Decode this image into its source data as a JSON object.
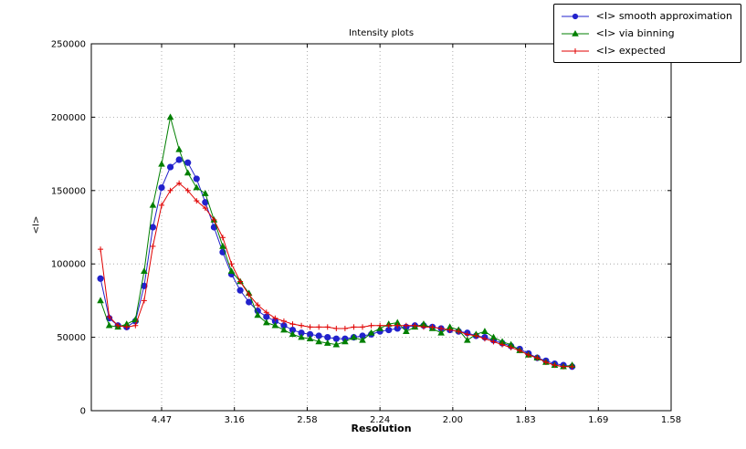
{
  "chart": {
    "title": "Intensity plots",
    "xlabel": "Resolution",
    "ylabel": "<I>"
  },
  "chart_data": {
    "type": "line",
    "title": "Intensity plots",
    "xlabel": "Resolution",
    "ylabel": "<I>",
    "grid": "dotted",
    "legend_position": "top-right",
    "x_note": "x axis is linear in 1/d^2; tick labels show resolution in Angstrom",
    "xlim_inv_d2": [
      0.0017,
      0.4
    ],
    "ylim": [
      0,
      250000
    ],
    "y_ticks": [
      0,
      50000,
      100000,
      150000,
      200000,
      250000
    ],
    "x_ticks": [
      {
        "label": "4.47",
        "inv_d2": 0.05
      },
      {
        "label": "3.16",
        "inv_d2": 0.1
      },
      {
        "label": "2.58",
        "inv_d2": 0.15
      },
      {
        "label": "2.24",
        "inv_d2": 0.2
      },
      {
        "label": "2.00",
        "inv_d2": 0.25
      },
      {
        "label": "1.83",
        "inv_d2": 0.3
      },
      {
        "label": "1.69",
        "inv_d2": 0.35
      },
      {
        "label": "1.58",
        "inv_d2": 0.4
      }
    ],
    "x_inv_d2": [
      0.008,
      0.014,
      0.02,
      0.026,
      0.032,
      0.038,
      0.044,
      0.05,
      0.056,
      0.062,
      0.068,
      0.074,
      0.08,
      0.086,
      0.092,
      0.098,
      0.104,
      0.11,
      0.116,
      0.122,
      0.128,
      0.134,
      0.14,
      0.146,
      0.152,
      0.158,
      0.164,
      0.17,
      0.176,
      0.182,
      0.188,
      0.194,
      0.2,
      0.206,
      0.212,
      0.218,
      0.224,
      0.23,
      0.236,
      0.242,
      0.248,
      0.254,
      0.26,
      0.266,
      0.272,
      0.278,
      0.284,
      0.29,
      0.296,
      0.302,
      0.308,
      0.314,
      0.32,
      0.326,
      0.332
    ],
    "series": [
      {
        "name": "<I> smooth approximation",
        "marker": "circle",
        "color": "#2222cc",
        "values": [
          90000,
          63000,
          58000,
          57000,
          61000,
          85000,
          125000,
          152000,
          166000,
          171000,
          169000,
          158000,
          142000,
          125000,
          108000,
          93000,
          82000,
          74000,
          68000,
          64000,
          61000,
          58000,
          55000,
          53000,
          52000,
          51000,
          50000,
          49000,
          49000,
          50000,
          51000,
          52000,
          54000,
          55000,
          56000,
          57000,
          58000,
          58000,
          57000,
          56000,
          55000,
          54000,
          53000,
          51000,
          50000,
          48000,
          46000,
          44000,
          42000,
          39000,
          36000,
          34000,
          32000,
          31000,
          30000
        ]
      },
      {
        "name": "<I> via binning",
        "marker": "triangle",
        "color": "#007f00",
        "values": [
          75000,
          58000,
          57000,
          59000,
          62000,
          95000,
          140000,
          168000,
          200000,
          178000,
          162000,
          152000,
          148000,
          130000,
          112000,
          95000,
          88000,
          80000,
          65000,
          60000,
          58000,
          55000,
          52000,
          50000,
          49000,
          47000,
          46000,
          45000,
          47000,
          50000,
          48000,
          53000,
          56000,
          59000,
          60000,
          54000,
          57000,
          59000,
          56000,
          53000,
          57000,
          55000,
          48000,
          52000,
          54000,
          50000,
          47000,
          45000,
          41000,
          38000,
          36000,
          33000,
          31000,
          30000,
          31000
        ]
      },
      {
        "name": "<I> expected",
        "marker": "plus",
        "color": "#e00000",
        "values": [
          110000,
          64000,
          58000,
          57000,
          58000,
          75000,
          112000,
          140000,
          150000,
          155000,
          150000,
          143000,
          138000,
          130000,
          118000,
          100000,
          88000,
          79000,
          72000,
          67000,
          63000,
          61000,
          59000,
          58000,
          57000,
          57000,
          57000,
          56000,
          56000,
          57000,
          57000,
          58000,
          58000,
          58000,
          58000,
          58000,
          58000,
          57000,
          57000,
          56000,
          55000,
          54000,
          52000,
          51000,
          49000,
          47000,
          45000,
          43000,
          41000,
          38000,
          36000,
          33000,
          31000,
          30000,
          30000
        ]
      }
    ]
  }
}
